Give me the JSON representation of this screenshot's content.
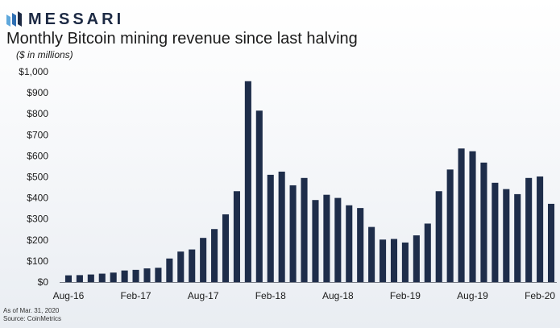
{
  "brand": {
    "name": "MESSARI",
    "logo_icon": "messari-logo-icon"
  },
  "chart_data": {
    "type": "bar",
    "title": "Monthly Bitcoin mining revenue since last halving",
    "ylabel": "($ in millions)",
    "xlabel": "",
    "ylim": [
      0,
      1000
    ],
    "yticks": [
      "$0",
      "$100",
      "$200",
      "$300",
      "$400",
      "$500",
      "$600",
      "$700",
      "$800",
      "$900",
      "$1,000"
    ],
    "ytick_values": [
      0,
      100,
      200,
      300,
      400,
      500,
      600,
      700,
      800,
      900,
      1000
    ],
    "categories": [
      "Aug-16",
      "Sep-16",
      "Oct-16",
      "Nov-16",
      "Dec-16",
      "Jan-17",
      "Feb-17",
      "Mar-17",
      "Apr-17",
      "May-17",
      "Jun-17",
      "Jul-17",
      "Aug-17",
      "Sep-17",
      "Oct-17",
      "Nov-17",
      "Dec-17",
      "Jan-18",
      "Feb-18",
      "Mar-18",
      "Apr-18",
      "May-18",
      "Jun-18",
      "Jul-18",
      "Aug-18",
      "Sep-18",
      "Oct-18",
      "Nov-18",
      "Dec-18",
      "Jan-19",
      "Feb-19",
      "Mar-19",
      "Apr-19",
      "May-19",
      "Jun-19",
      "Jul-19",
      "Aug-19",
      "Sep-19",
      "Oct-19",
      "Nov-19",
      "Dec-19",
      "Jan-20",
      "Feb-20",
      "Mar-20"
    ],
    "xtick_labels": [
      {
        "category": "Aug-16",
        "label": "Aug-16"
      },
      {
        "category": "Feb-17",
        "label": "Feb-17"
      },
      {
        "category": "Aug-17",
        "label": "Aug-17"
      },
      {
        "category": "Feb-18",
        "label": "Feb-18"
      },
      {
        "category": "Aug-18",
        "label": "Aug-18"
      },
      {
        "category": "Feb-19",
        "label": "Feb-19"
      },
      {
        "category": "Aug-19",
        "label": "Aug-19"
      },
      {
        "category": "Feb-20",
        "label": "Feb-20"
      }
    ],
    "values": [
      32,
      33,
      36,
      40,
      45,
      55,
      58,
      65,
      68,
      112,
      145,
      155,
      210,
      252,
      322,
      432,
      955,
      815,
      510,
      525,
      460,
      495,
      390,
      415,
      400,
      365,
      352,
      262,
      202,
      205,
      188,
      222,
      278,
      432,
      535,
      635,
      622,
      568,
      472,
      442,
      418,
      495,
      502,
      372
    ],
    "bar_color": "#1e2d4a",
    "grid": false
  },
  "footer": {
    "as_of": "As of Mar. 31, 2020",
    "source": "Source: CoinMetrics"
  }
}
